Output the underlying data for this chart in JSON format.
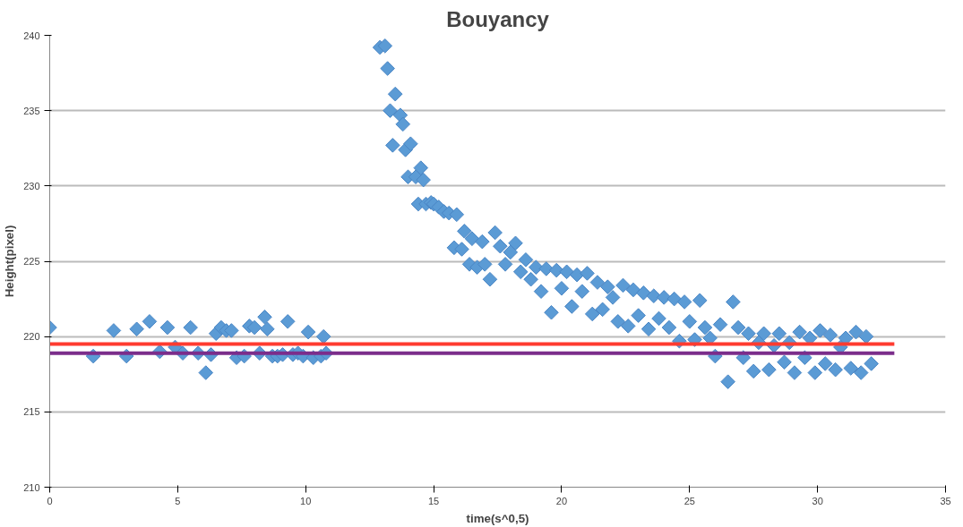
{
  "chart_data": {
    "type": "scatter",
    "title": "Bouyancy",
    "xlabel": "time(s^0,5)",
    "ylabel": "Height(pixel)",
    "xlim": [
      0,
      35
    ],
    "xticks": [
      0,
      5,
      10,
      15,
      20,
      25,
      30,
      35
    ],
    "ylim": [
      210,
      240
    ],
    "yticks": [
      210,
      215,
      220,
      225,
      230,
      235,
      240
    ],
    "grid": "y",
    "series": [
      {
        "color": "#5b9bd5",
        "marker": "diamond",
        "x": [
          0,
          1.7,
          2.5,
          3.0,
          3.4,
          3.9,
          4.3,
          4.6,
          4.9,
          5.2,
          5.5,
          5.8,
          6.1,
          6.3,
          6.5,
          6.7,
          6.9,
          7.1,
          7.3,
          7.6,
          7.8,
          8.0,
          8.2,
          8.4,
          8.5,
          8.7,
          8.9,
          9.1,
          9.3,
          9.5,
          9.7,
          9.9,
          10.1,
          10.3,
          10.6,
          10.7,
          10.8,
          12.9,
          13.1,
          13.2,
          13.3,
          13.4,
          13.5,
          13.7,
          13.8,
          13.9,
          14.0,
          14.1,
          14.3,
          14.4,
          14.5,
          14.6,
          14.7,
          14.9,
          15.0,
          15.2,
          15.4,
          15.6,
          15.8,
          15.9,
          16.1,
          16.2,
          16.4,
          16.5,
          16.7,
          16.9,
          17.0,
          17.2,
          17.4,
          17.6,
          17.8,
          18.0,
          18.2,
          18.4,
          18.6,
          18.8,
          19.0,
          19.2,
          19.4,
          19.6,
          19.8,
          20.0,
          20.2,
          20.4,
          20.6,
          20.8,
          21.0,
          21.2,
          21.4,
          21.6,
          21.8,
          22.0,
          22.2,
          22.4,
          22.6,
          22.8,
          23.0,
          23.2,
          23.4,
          23.6,
          23.8,
          24.0,
          24.2,
          24.4,
          24.6,
          24.8,
          25.0,
          25.2,
          25.4,
          25.6,
          25.8,
          26.0,
          26.2,
          26.5,
          26.7,
          26.9,
          27.1,
          27.3,
          27.5,
          27.7,
          27.9,
          28.1,
          28.3,
          28.5,
          28.7,
          28.9,
          29.1,
          29.3,
          29.5,
          29.7,
          29.9,
          30.1,
          30.3,
          30.5,
          30.7,
          30.9,
          31.1,
          31.3,
          31.5,
          31.7,
          31.9,
          32.1
        ],
        "values": [
          220.6,
          218.7,
          220.4,
          218.7,
          220.5,
          221.0,
          219.0,
          220.6,
          219.3,
          218.9,
          220.6,
          218.9,
          217.6,
          218.8,
          220.2,
          220.6,
          220.4,
          220.4,
          218.6,
          218.7,
          220.7,
          220.6,
          218.9,
          221.3,
          220.5,
          218.7,
          218.7,
          218.8,
          221.0,
          218.8,
          218.9,
          218.7,
          220.3,
          218.6,
          218.7,
          220.0,
          218.9,
          239.2,
          239.3,
          237.8,
          235.0,
          232.7,
          236.1,
          234.7,
          234.1,
          232.4,
          230.6,
          232.8,
          230.6,
          228.8,
          231.2,
          230.4,
          228.8,
          228.9,
          228.8,
          228.6,
          228.3,
          228.2,
          225.9,
          228.1,
          225.8,
          227.0,
          224.8,
          226.5,
          224.6,
          226.3,
          224.8,
          223.8,
          226.9,
          226.0,
          224.8,
          225.6,
          226.2,
          224.3,
          225.1,
          223.8,
          224.6,
          223.0,
          224.5,
          221.6,
          224.4,
          223.2,
          224.3,
          222.0,
          224.1,
          223.0,
          224.2,
          221.5,
          223.6,
          221.8,
          223.3,
          222.6,
          221.0,
          223.4,
          220.7,
          223.1,
          221.4,
          222.9,
          220.5,
          222.7,
          221.2,
          222.6,
          220.6,
          222.5,
          219.7,
          222.3,
          221.0,
          219.8,
          222.4,
          220.6,
          219.9,
          218.7,
          220.8,
          217.0,
          222.3,
          220.6,
          218.6,
          220.2,
          217.7,
          219.6,
          220.2,
          217.8,
          219.4,
          220.2,
          218.3,
          219.6,
          217.6,
          220.3,
          218.6,
          219.9,
          217.6,
          220.4,
          218.2,
          220.1,
          217.8,
          219.3,
          219.9,
          217.9,
          220.3,
          217.6,
          220.0,
          218.2
        ]
      },
      {
        "type": "line",
        "marker": "none",
        "color": "#ff3b30",
        "x": [
          0,
          33
        ],
        "values": [
          219.5,
          219.5
        ]
      },
      {
        "type": "line",
        "marker": "none",
        "color": "#7b2d8b",
        "x": [
          0,
          33
        ],
        "values": [
          218.9,
          218.9
        ]
      }
    ]
  }
}
